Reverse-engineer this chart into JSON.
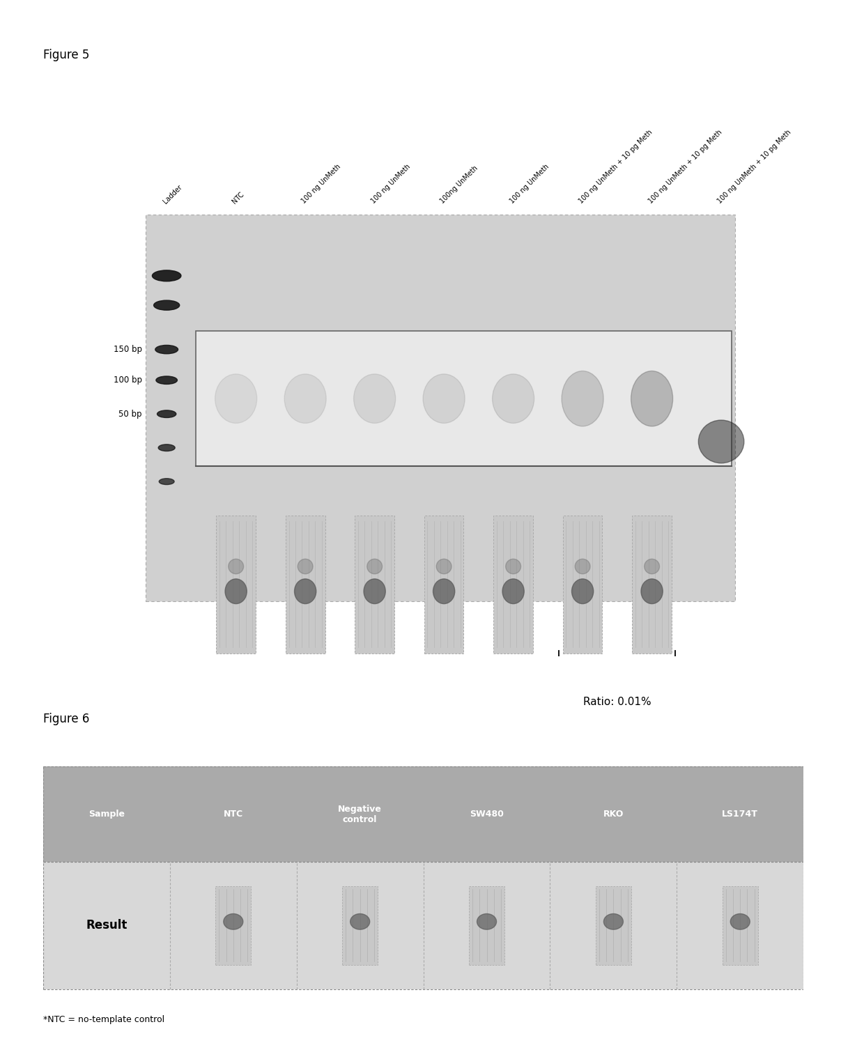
{
  "fig5_title": "Figure 5",
  "fig6_title": "Figure 6",
  "fig5_col_labels": [
    "Ladder",
    "NTC",
    "100 ng UnMeth",
    "100 ng UnMeth",
    "100ng UnMeth",
    "100 ng UnMeth",
    "100 ng UnMeth + 10 pg Meth",
    "100 ng UnMeth + 10 pg Meth",
    "100 ng UnMeth + 10 pg Meth"
  ],
  "bp_labels": [
    "150 bp",
    "100 bp",
    "50 bp"
  ],
  "ratio_text": "Ratio: 0.01%",
  "fig6_headers": [
    "Sample",
    "NTC",
    "Negative\ncontrol",
    "SW480",
    "RKO",
    "LS174T"
  ],
  "fig6_result_label": "Result",
  "footnote": "*NTC = no-template control",
  "bg_color": "#ffffff",
  "gel_outer_bg": "#d0d0d0",
  "gel_inner_bg": "#e8e8e8",
  "ladder_color": "#111111",
  "table_header_color": "#aaaaaa",
  "table_result_color": "#d8d8d8",
  "table_text_color": "#ffffff",
  "border_color": "#999999",
  "bead_bg": "#c8c8c8",
  "bead_stripe_color": "#aaaaaa",
  "bead_mark_color": "#555555"
}
